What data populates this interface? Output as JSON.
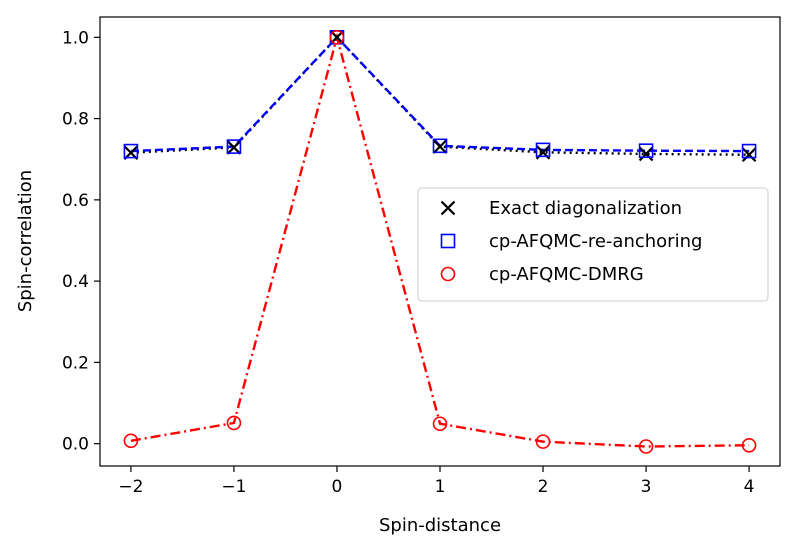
{
  "chart_data": {
    "type": "line",
    "title": "",
    "xlabel": "Spin-distance",
    "ylabel": "Spin-correlation",
    "xlim": [
      -2.3,
      4.3
    ],
    "ylim": [
      -0.055,
      1.05
    ],
    "xticks": [
      -2,
      -1,
      0,
      1,
      2,
      3,
      4
    ],
    "xtick_labels": [
      "−2",
      "−1",
      "0",
      "1",
      "2",
      "3",
      "4"
    ],
    "yticks": [
      0.0,
      0.2,
      0.4,
      0.6,
      0.8,
      1.0
    ],
    "ytick_labels": [
      "0.0",
      "0.2",
      "0.4",
      "0.6",
      "0.8",
      "1.0"
    ],
    "grid": false,
    "legend_position": "center-right",
    "x": [
      -2,
      -1,
      0,
      1,
      2,
      3,
      4
    ],
    "series": [
      {
        "name": "Exact diagonalization",
        "values": [
          0.716,
          0.729,
          1.0,
          0.731,
          0.717,
          0.713,
          0.711
        ],
        "color": "#000000",
        "marker": "x",
        "linestyle": "dotted"
      },
      {
        "name": "cp-AFQMC-re-anchoring",
        "values": [
          0.72,
          0.731,
          1.0,
          0.733,
          0.723,
          0.721,
          0.72
        ],
        "color": "#0000ff",
        "marker": "square",
        "linestyle": "dashed"
      },
      {
        "name": "cp-AFQMC-DMRG",
        "values": [
          0.007,
          0.051,
          1.0,
          0.049,
          0.005,
          -0.007,
          -0.004
        ],
        "color": "#ff0000",
        "marker": "circle",
        "linestyle": "dashdot"
      }
    ]
  }
}
